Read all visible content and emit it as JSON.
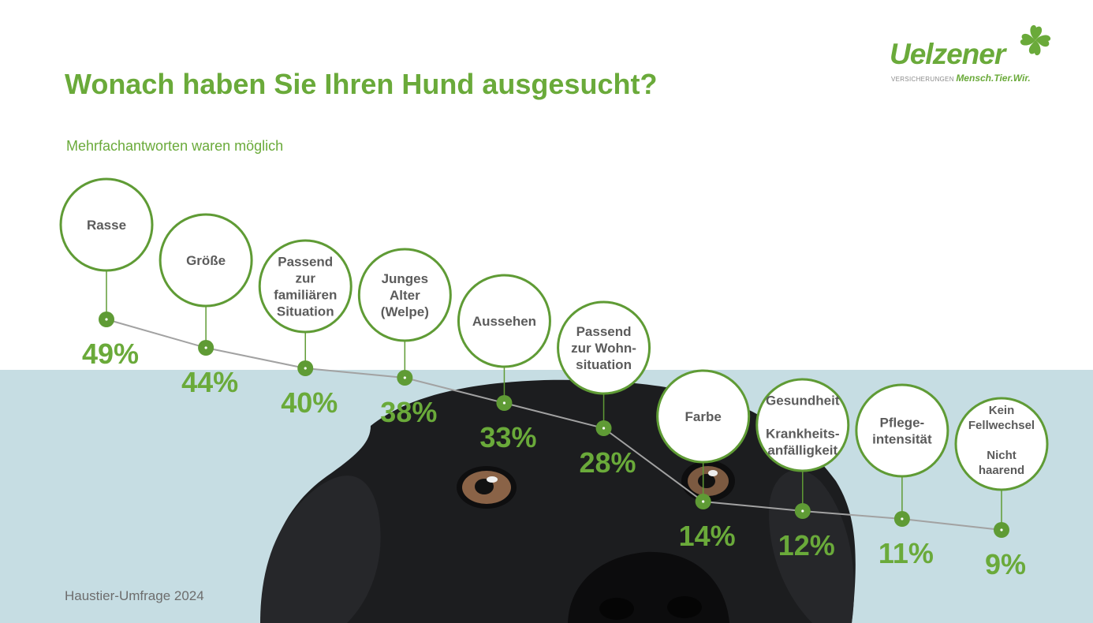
{
  "title": "Wonach haben Sie Ihren Hund ausgesucht?",
  "subtitle": "Mehrfachantworten waren möglich",
  "footer": "Haustier-Umfrage 2024",
  "logo": {
    "word": "Uelzener",
    "tag": "VERSICHERUNGEN",
    "claim": "Mensch.Tier.Wir."
  },
  "colors": {
    "accent": "#6aaa3a",
    "dot": "#5f9b35",
    "line": "#a2a2a2",
    "label_text": "#5b5b5b",
    "band": "#c6dde3"
  },
  "chart_data": {
    "type": "line",
    "title": "Wonach haben Sie Ihren Hund ausgesucht?",
    "subtitle": "Mehrfachantworten waren möglich",
    "unit": "%",
    "categories": [
      [
        "Rasse"
      ],
      [
        "Größe"
      ],
      [
        "Passend",
        "zur",
        "familiären",
        "Situation"
      ],
      [
        "Junges",
        "Alter",
        "(Welpe)"
      ],
      [
        "Aussehen"
      ],
      [
        "Passend",
        "zur Wohn-",
        "situation"
      ],
      [
        "Farbe"
      ],
      [
        "Gesundheit",
        "",
        "Krankheits-",
        "anfälligkeit"
      ],
      [
        "Pflege-",
        "intensität"
      ],
      [
        "Kein",
        "Fellwechsel",
        "",
        "Nicht",
        "haarend"
      ]
    ],
    "values": [
      49,
      44,
      40,
      38,
      33,
      28,
      14,
      12,
      11,
      9
    ],
    "value_labels": [
      "49%",
      "44%",
      "40%",
      "38%",
      "33%",
      "28%",
      "14%",
      "12%",
      "11%",
      "9%"
    ],
    "grid": false,
    "legend": "none"
  }
}
